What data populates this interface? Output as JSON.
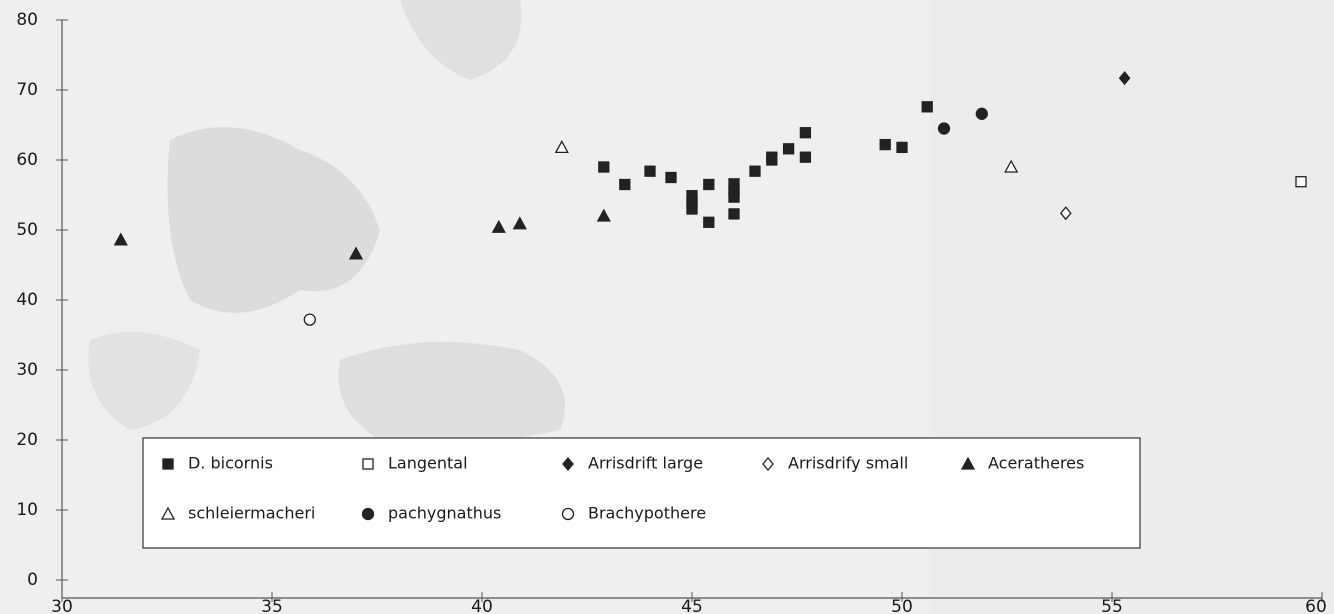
{
  "chart_data": {
    "type": "scatter",
    "xlim": [
      30,
      60
    ],
    "xticks": [
      30,
      35,
      40,
      45,
      50,
      55,
      60
    ],
    "ylim": [
      0,
      80
    ],
    "yticks": [
      0,
      10,
      20,
      30,
      40,
      50,
      60,
      70,
      80
    ],
    "series": [
      {
        "name": "D. bicornis",
        "marker": "square",
        "filled": true,
        "color": "#222222",
        "x": [
          42.9,
          43.4,
          44.0,
          44.5,
          45.0,
          45.0,
          45.0,
          45.4,
          45.4,
          46.0,
          46.0,
          46.0,
          46.0,
          46.5,
          46.9,
          46.9,
          47.3,
          47.7,
          47.7,
          49.6,
          50.0,
          50.6
        ],
        "y": [
          59.0,
          56.5,
          58.4,
          57.5,
          54.9,
          53.9,
          53.0,
          56.5,
          51.1,
          56.6,
          55.6,
          54.7,
          52.3,
          58.4,
          60.0,
          60.4,
          61.6,
          63.9,
          60.4,
          62.2,
          61.8,
          67.6
        ]
      },
      {
        "name": "Langental",
        "marker": "square",
        "filled": false,
        "color": "#222222",
        "x": [
          59.5
        ],
        "y": [
          56.9
        ]
      },
      {
        "name": "Arrisdrift large",
        "marker": "diamond",
        "filled": true,
        "color": "#222222",
        "x": [
          55.3
        ],
        "y": [
          71.7
        ]
      },
      {
        "name": "Arrisdrify small",
        "marker": "diamond",
        "filled": false,
        "color": "#222222",
        "x": [
          53.9
        ],
        "y": [
          52.4
        ]
      },
      {
        "name": "Aceratheres",
        "marker": "triangle",
        "filled": true,
        "color": "#222222",
        "x": [
          31.4,
          37.0,
          40.4,
          40.9,
          42.9
        ],
        "y": [
          48.6,
          46.6,
          50.4,
          50.9,
          52.0
        ]
      },
      {
        "name": "schleiermacheri",
        "marker": "triangle",
        "filled": false,
        "color": "#222222",
        "x": [
          41.9,
          52.6
        ],
        "y": [
          61.8,
          59.0
        ]
      },
      {
        "name": "pachygnathus",
        "marker": "circle",
        "filled": true,
        "color": "#222222",
        "x": [
          51.0,
          51.9
        ],
        "y": [
          64.5,
          66.6
        ]
      },
      {
        "name": "Brachypothere",
        "marker": "circle",
        "filled": false,
        "color": "#222222",
        "x": [
          35.9
        ],
        "y": [
          37.2
        ]
      }
    ]
  }
}
